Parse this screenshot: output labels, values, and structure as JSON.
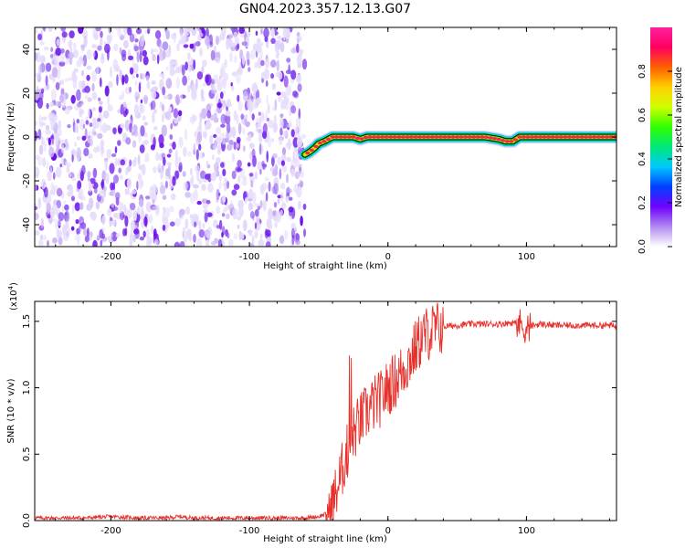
{
  "title": "GN04.2023.357.12.13.G07",
  "colors": {
    "background": "#ffffff",
    "axis": "#000000",
    "snr_line": "#e8302a",
    "noise_purple": "#6a10e8",
    "signal_red": "#ff2050",
    "signal_outline": "#000000"
  },
  "chart_data": [
    {
      "type": "heatmap",
      "xlabel": "Height of straight line (km)",
      "ylabel": "Frequency (Hz)",
      "xlim": [
        -255,
        165
      ],
      "ylim": [
        -50,
        50
      ],
      "xticks": [
        -200,
        -100,
        0,
        100
      ],
      "yticks": [
        -40,
        -20,
        0,
        20,
        40
      ],
      "grid": false,
      "noise_region_x": [
        -255,
        -60
      ],
      "signal_track": {
        "x": [
          -60,
          -57,
          -53,
          -50,
          -46,
          -43,
          -40,
          -37,
          -34,
          -30,
          -25,
          -20,
          -15,
          -10,
          0,
          10,
          20,
          30,
          40,
          50,
          60,
          70,
          80,
          85,
          90,
          95,
          100,
          120,
          140,
          165
        ],
        "frequency": [
          -8,
          -7,
          -5,
          -3,
          -2,
          -1,
          0,
          0,
          0,
          0,
          0,
          -1,
          0,
          0,
          0,
          0,
          0,
          0,
          0,
          0,
          0,
          0,
          -1,
          -2,
          -2,
          0,
          0,
          0,
          0,
          0
        ]
      },
      "colorbar": {
        "label": "Normalized spectral amplitude",
        "range": [
          0,
          1
        ],
        "ticks": [
          "0.0",
          "0.2",
          "0.4",
          "0.6",
          "0.8"
        ],
        "colors": [
          "#ffffff",
          "#b08af0",
          "#7000ff",
          "#0040ff",
          "#00c8ff",
          "#00e87a",
          "#30ff00",
          "#d0ff00",
          "#ffd000",
          "#ff6000",
          "#ff0060",
          "#ff20a0"
        ]
      }
    },
    {
      "type": "line",
      "xlabel": "Height of straight line (km)",
      "ylabel": "SNR (10 * v/v)",
      "y_scale_label": "(x10",
      "y_scale_exp": "4",
      "y_scale_close": ")",
      "xlim": [
        -255,
        165
      ],
      "ylim": [
        0,
        1.65
      ],
      "xticks": [
        -200,
        -100,
        0,
        100
      ],
      "yticks": [
        "0.0",
        "0.5",
        "1.0",
        "1.5"
      ],
      "grid": false,
      "series": [
        {
          "x": [
            -255,
            -240,
            -220,
            -200,
            -180,
            -160,
            -150,
            -140,
            -120,
            -100,
            -80,
            -60,
            -50,
            -45,
            -40,
            -35,
            -30,
            -25,
            -20,
            -15,
            -10,
            -5,
            0,
            5,
            10,
            15,
            20,
            25,
            30,
            40,
            50,
            60,
            70,
            80,
            90,
            95,
            100,
            105,
            110,
            120,
            130,
            140,
            150,
            160,
            165
          ],
          "values": [
            0.02,
            0.02,
            0.02,
            0.03,
            0.02,
            0.02,
            0.03,
            0.02,
            0.02,
            0.02,
            0.02,
            0.02,
            0.03,
            0.05,
            0.12,
            0.3,
            0.5,
            0.65,
            0.75,
            0.82,
            0.88,
            0.92,
            1.0,
            1.05,
            1.12,
            1.2,
            1.3,
            1.38,
            1.42,
            1.46,
            1.47,
            1.48,
            1.48,
            1.48,
            1.49,
            1.48,
            1.45,
            1.47,
            1.48,
            1.47,
            1.47,
            1.47,
            1.47,
            1.47,
            1.46
          ]
        }
      ]
    }
  ]
}
